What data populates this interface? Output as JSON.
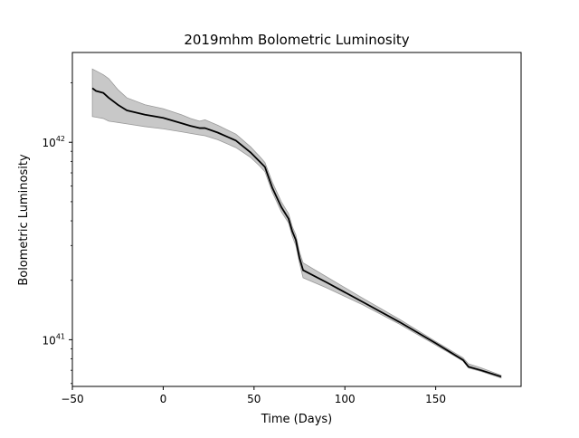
{
  "chart_data": {
    "type": "line",
    "title": "2019mhm Bolometric Luminosity",
    "xlabel": "Time (Days)",
    "ylabel": "Bolometric Luminosity",
    "yscale": "log",
    "xlim": [
      -50,
      197
    ],
    "ylim": [
      5.8e+40,
      2.85e+42
    ],
    "x_ticks": [
      -50,
      0,
      50,
      100,
      150
    ],
    "x_tick_labels": [
      "−50",
      "0",
      "50",
      "100",
      "150"
    ],
    "y_major_ticks": [
      {
        "value": 1e+41,
        "base": "10",
        "exp": "41"
      },
      {
        "value": 1e+42,
        "base": "10",
        "exp": "42"
      }
    ],
    "y_minor_ticks": [
      6e+40,
      7e+40,
      8e+40,
      9e+40,
      2e+41,
      3e+41,
      4e+41,
      5e+41,
      6e+41,
      7e+41,
      8e+41,
      9e+41,
      2e+42
    ],
    "grid": false,
    "legend": "none",
    "colors": {
      "line": "#000000",
      "band": "#c8c8c8",
      "band_edge": "#9a9a9a"
    },
    "series": [
      {
        "x": [
          -39,
          -37,
          -33,
          -30,
          -25,
          -20,
          -10,
          0,
          10,
          15,
          20,
          23,
          30,
          40,
          48,
          53,
          56,
          60,
          65,
          69,
          71,
          73,
          75,
          77,
          90,
          110,
          130,
          150,
          165,
          168,
          175,
          186
        ],
        "y": [
          1.88e+42,
          1.82e+42,
          1.78e+42,
          1.68e+42,
          1.55e+42,
          1.45e+42,
          1.38e+42,
          1.33e+42,
          1.25e+42,
          1.21e+42,
          1.18e+42,
          1.18e+42,
          1.12e+42,
          1.02e+42,
          8.9e+41,
          8e+41,
          7.5e+41,
          5.9e+41,
          4.7e+41,
          4.1e+41,
          3.55e+41,
          3.2e+41,
          2.6e+41,
          2.25e+41,
          1.95e+41,
          1.55e+41,
          1.23e+41,
          9.6e+40,
          7.9e+40,
          7.3e+40,
          7e+40,
          6.5e+40
        ],
        "y_low": [
          1.35e+42,
          1.34e+42,
          1.32e+42,
          1.28e+42,
          1.26e+42,
          1.24e+42,
          1.2e+42,
          1.17e+42,
          1.13e+42,
          1.11e+42,
          1.09e+42,
          1.08e+42,
          1.03e+42,
          9.4e+41,
          8.4e+41,
          7.6e+41,
          7.1e+41,
          5.6e+41,
          4.45e+41,
          3.9e+41,
          3.35e+41,
          3e+41,
          2.45e+41,
          2.06e+41,
          1.83e+41,
          1.5e+41,
          1.2e+41,
          9.4e+40,
          7.8e+40,
          7.2e+40,
          6.9e+40,
          6.4e+40
        ],
        "y_high": [
          2.35e+42,
          2.3e+42,
          2.2e+42,
          2.1e+42,
          1.85e+42,
          1.68e+42,
          1.55e+42,
          1.48e+42,
          1.38e+42,
          1.32e+42,
          1.28e+42,
          1.3e+42,
          1.22e+42,
          1.1e+42,
          9.5e+41,
          8.5e+41,
          7.9e+41,
          6.3e+41,
          5e+41,
          4.35e+41,
          3.75e+41,
          3.4e+41,
          2.78e+41,
          2.45e+41,
          2.08e+41,
          1.62e+41,
          1.27e+41,
          9.8e+40,
          8.1e+40,
          7.55e+40,
          7.2e+40,
          6.6e+40
        ]
      }
    ]
  }
}
